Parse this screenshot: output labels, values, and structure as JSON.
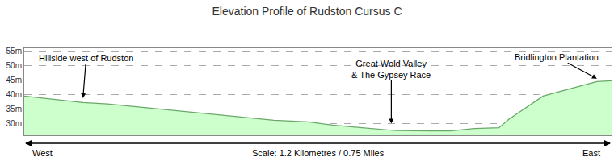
{
  "chart_data": {
    "type": "area",
    "title": "Elevation Profile of Rudston Cursus C",
    "x": [
      0,
      0.07,
      0.12,
      0.17,
      0.23,
      0.28,
      0.36,
      0.45,
      0.51,
      0.58,
      0.63,
      0.69,
      0.76,
      0.83,
      0.87,
      0.92,
      0.97,
      0.99,
      1.02,
      1.06,
      1.11,
      1.17,
      1.2
    ],
    "values": [
      39.5,
      38.2,
      37.3,
      36.8,
      35.8,
      35.0,
      33.6,
      32.2,
      31.2,
      30.6,
      29.5,
      28.6,
      27.6,
      27.5,
      27.5,
      28.3,
      28.6,
      31.5,
      35.0,
      39.5,
      41.8,
      44.5,
      44.8
    ],
    "color": "#ccffcc",
    "xlim": [
      0,
      1.2
    ],
    "ylim": [
      26,
      56
    ],
    "yticks": [
      {
        "value": 30,
        "label": "30m"
      },
      {
        "value": 35,
        "label": "35m"
      },
      {
        "value": 40,
        "label": "40m"
      },
      {
        "value": 45,
        "label": "45m"
      },
      {
        "value": 50,
        "label": "50m"
      },
      {
        "value": 55,
        "label": "55m"
      }
    ],
    "grid": true,
    "tick_labels": "y",
    "xlabel": "Scale: 1.2 Kilometres / 0.75 Miles",
    "x_ends": [
      "West",
      "East"
    ],
    "annotations": [
      {
        "text": "Hillside west of Rudston",
        "x": 0.12,
        "y": 38.8
      },
      {
        "text": "Great Wold Valley\n& The Gypsey Race",
        "x": 0.75,
        "y": 30
      },
      {
        "text": "Bridlington Plantation",
        "x": 1.17,
        "y": 45.5
      }
    ]
  }
}
